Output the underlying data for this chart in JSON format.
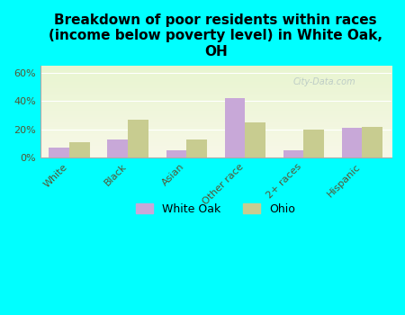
{
  "title": "Breakdown of poor residents within races\n(income below poverty level) in White Oak,\nOH",
  "categories": [
    "White",
    "Black",
    "Asian",
    "Other race",
    "2+ races",
    "Hispanic"
  ],
  "white_oak_values": [
    7,
    13,
    5,
    42,
    5,
    21
  ],
  "ohio_values": [
    11,
    27,
    13,
    25,
    20,
    22
  ],
  "white_oak_color": "#c8a8d8",
  "ohio_color": "#c8cc90",
  "bg_color": "#00ffff",
  "ylim": [
    0,
    65
  ],
  "yticks": [
    0,
    20,
    40,
    60
  ],
  "ytick_labels": [
    "0%",
    "20%",
    "40%",
    "60%"
  ],
  "bar_width": 0.35,
  "title_fontsize": 11,
  "tick_fontsize": 8,
  "legend_fontsize": 9
}
